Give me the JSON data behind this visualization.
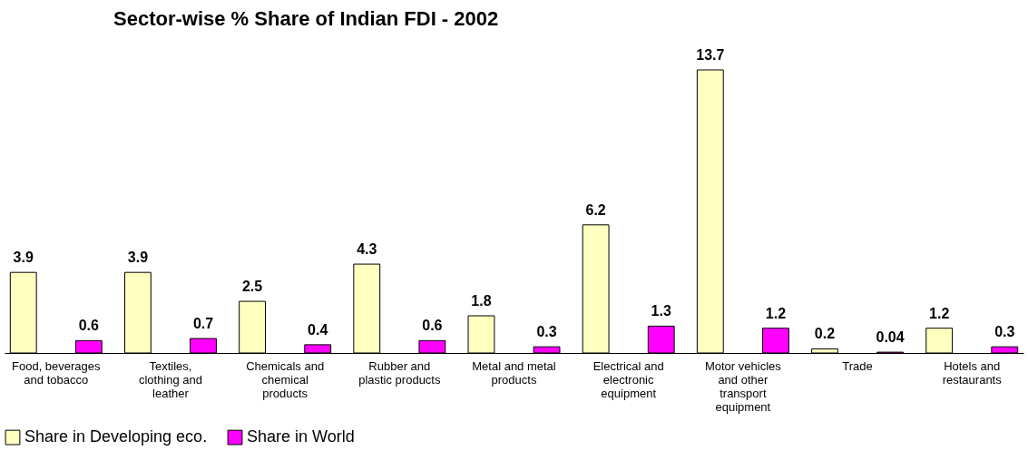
{
  "chart_data": {
    "type": "bar",
    "title": "Sector-wise % Share of Indian FDI - 2002",
    "categories": [
      "Food, beverages and tobacco",
      "Textiles, clothing and leather",
      "Chemicals and chemical products",
      "Rubber and plastic products",
      "Metal and metal products",
      "Electrical and electronic equipment",
      "Motor vehicles and other transport equipment",
      "Trade",
      "Hotels and restaurants"
    ],
    "series": [
      {
        "name": "Share in Developing eco.",
        "color": "#ffffc0",
        "values": [
          3.9,
          3.9,
          2.5,
          4.3,
          1.8,
          6.2,
          13.7,
          0.2,
          1.2
        ]
      },
      {
        "name": "Share in World",
        "color": "#ff00ff",
        "values": [
          0.6,
          0.7,
          0.4,
          0.6,
          0.3,
          1.3,
          1.2,
          0.04,
          0.3
        ]
      }
    ],
    "data_labels": true,
    "legend": "bottom",
    "grid": false
  }
}
